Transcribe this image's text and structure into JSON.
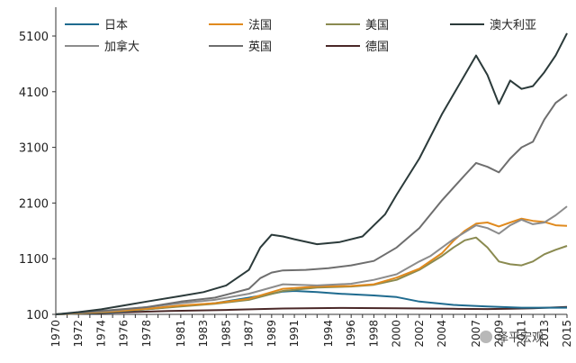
{
  "chart_data": {
    "type": "line",
    "title": "",
    "xlabel": "",
    "ylabel": "",
    "xlim": [
      1970,
      2015
    ],
    "ylim": [
      100,
      5100
    ],
    "y_ticks": [
      "100",
      "1100",
      "2100",
      "3100",
      "4100",
      "5100"
    ],
    "x_ticks": [
      "1970",
      "1972",
      "1974",
      "1976",
      "1978",
      "1981",
      "1983",
      "1985",
      "1987",
      "1989",
      "1991",
      "1994",
      "1996",
      "1998",
      "2000",
      "2002",
      "2004",
      "2007",
      "2009",
      "2011",
      "2013",
      "2015"
    ],
    "grid": false,
    "legend_position": "top",
    "series": [
      {
        "name": "日本",
        "color": "#1f6b8f",
        "x": [
          1970,
          1972,
          1975,
          1978,
          1981,
          1984,
          1987,
          1989,
          1990,
          1991,
          1993,
          1995,
          1998,
          2000,
          2002,
          2005,
          2008,
          2011,
          2015
        ],
        "y": [
          100,
          115,
          140,
          190,
          250,
          300,
          400,
          470,
          510,
          520,
          500,
          470,
          440,
          410,
          330,
          270,
          240,
          220,
          220
        ]
      },
      {
        "name": "法国",
        "color": "#e08a1e",
        "x": [
          1970,
          1972,
          1975,
          1978,
          1981,
          1984,
          1987,
          1990,
          1993,
          1996,
          1998,
          2000,
          2002,
          2004,
          2005,
          2006,
          2007,
          2008,
          2009,
          2010,
          2011,
          2012,
          2013,
          2014,
          2015
        ],
        "y": [
          100,
          120,
          150,
          200,
          260,
          300,
          380,
          560,
          600,
          610,
          640,
          760,
          920,
          1200,
          1420,
          1600,
          1730,
          1750,
          1680,
          1750,
          1820,
          1780,
          1760,
          1700,
          1690
        ]
      },
      {
        "name": "美国",
        "color": "#8a8a50",
        "x": [
          1970,
          1972,
          1975,
          1978,
          1981,
          1984,
          1987,
          1990,
          1993,
          1996,
          1998,
          2000,
          2002,
          2004,
          2005,
          2006,
          2007,
          2008,
          2009,
          2010,
          2011,
          2012,
          2013,
          2014,
          2015
        ],
        "y": [
          100,
          120,
          150,
          190,
          240,
          290,
          360,
          520,
          580,
          600,
          630,
          720,
          900,
          1150,
          1300,
          1430,
          1480,
          1300,
          1050,
          1000,
          980,
          1050,
          1180,
          1260,
          1330
        ]
      },
      {
        "name": "澳大利亚",
        "color": "#2b3a3a",
        "x": [
          1970,
          1972,
          1974,
          1976,
          1978,
          1981,
          1983,
          1985,
          1987,
          1988,
          1989,
          1990,
          1991,
          1993,
          1995,
          1997,
          1999,
          2000,
          2002,
          2004,
          2005,
          2006,
          2007,
          2008,
          2009,
          2010,
          2011,
          2012,
          2013,
          2014,
          2015
        ],
        "y": [
          100,
          140,
          190,
          260,
          330,
          430,
          500,
          620,
          900,
          1300,
          1530,
          1500,
          1450,
          1360,
          1400,
          1500,
          1900,
          2250,
          2900,
          3700,
          4050,
          4400,
          4750,
          4400,
          3880,
          4300,
          4150,
          4200,
          4450,
          4750,
          5150
        ]
      },
      {
        "name": "加拿大",
        "color": "#8c8c8c",
        "x": [
          1970,
          1972,
          1975,
          1978,
          1981,
          1984,
          1987,
          1990,
          1993,
          1996,
          1998,
          2000,
          2002,
          2003,
          2005,
          2007,
          2008,
          2009,
          2010,
          2011,
          2012,
          2013,
          2014,
          2015
        ],
        "y": [
          100,
          130,
          170,
          230,
          300,
          360,
          470,
          640,
          620,
          650,
          720,
          820,
          1050,
          1150,
          1450,
          1700,
          1650,
          1550,
          1700,
          1800,
          1720,
          1750,
          1880,
          2040
        ]
      },
      {
        "name": "英国",
        "color": "#6e6e6e",
        "x": [
          1970,
          1972,
          1975,
          1978,
          1981,
          1984,
          1987,
          1988,
          1989,
          1990,
          1992,
          1994,
          1996,
          1998,
          2000,
          2002,
          2004,
          2006,
          2007,
          2008,
          2009,
          2010,
          2011,
          2012,
          2013,
          2014,
          2015
        ],
        "y": [
          100,
          130,
          180,
          230,
          330,
          400,
          560,
          750,
          850,
          890,
          900,
          930,
          980,
          1060,
          1300,
          1650,
          2150,
          2600,
          2820,
          2750,
          2650,
          2900,
          3100,
          3200,
          3600,
          3900,
          4050
        ]
      },
      {
        "name": "德国",
        "color": "#4a2828",
        "x": [
          1970,
          1975,
          1980,
          1985,
          1990,
          1995,
          2000,
          2005,
          2008,
          2010,
          2012,
          2015
        ],
        "y": [
          100,
          130,
          160,
          180,
          205,
          215,
          210,
          200,
          195,
          200,
          210,
          235
        ]
      }
    ]
  },
  "watermark": {
    "text": "泽平宏观",
    "icon": "wechat-icon"
  }
}
